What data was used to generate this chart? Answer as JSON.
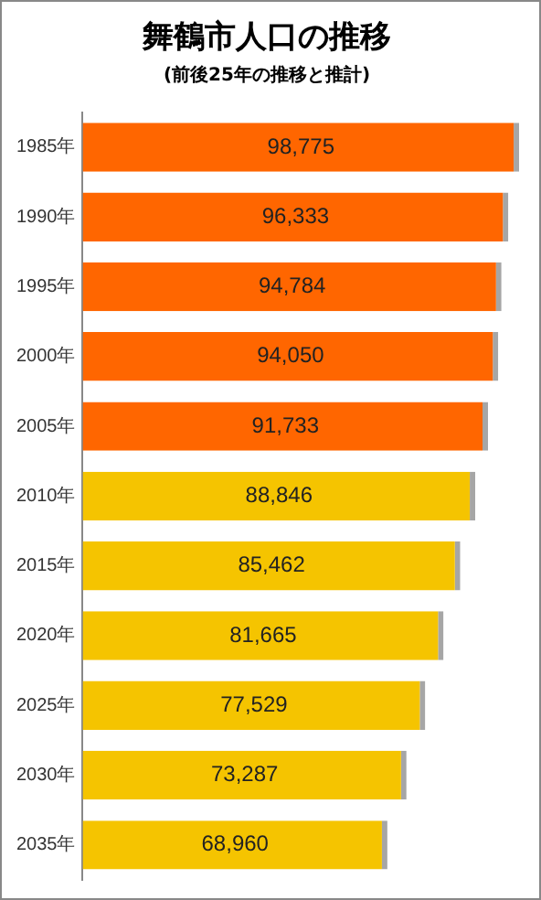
{
  "chart_data": {
    "type": "bar",
    "orientation": "horizontal",
    "title": "舞鶴市人口の推移",
    "subtitle": "(前後25年の推移と推計)",
    "categories": [
      "1985年",
      "1990年",
      "1995年",
      "2000年",
      "2005年",
      "2010年",
      "2015年",
      "2020年",
      "2025年",
      "2030年",
      "2035年"
    ],
    "values": [
      98775,
      96333,
      94784,
      94050,
      91733,
      88846,
      85462,
      81665,
      77529,
      73287,
      68960
    ],
    "colors": [
      "#ff6600",
      "#ff6600",
      "#ff6600",
      "#ff6600",
      "#ff6600",
      "#f5c400",
      "#f5c400",
      "#f5c400",
      "#f5c400",
      "#f5c400",
      "#f5c400"
    ],
    "value_labels": [
      "98,775",
      "96,333",
      "94,784",
      "94,050",
      "91,733",
      "88,846",
      "85,462",
      "81,665",
      "77,529",
      "73,287",
      "68,960"
    ],
    "grid": false,
    "legend": false,
    "tick_labels": "y"
  }
}
